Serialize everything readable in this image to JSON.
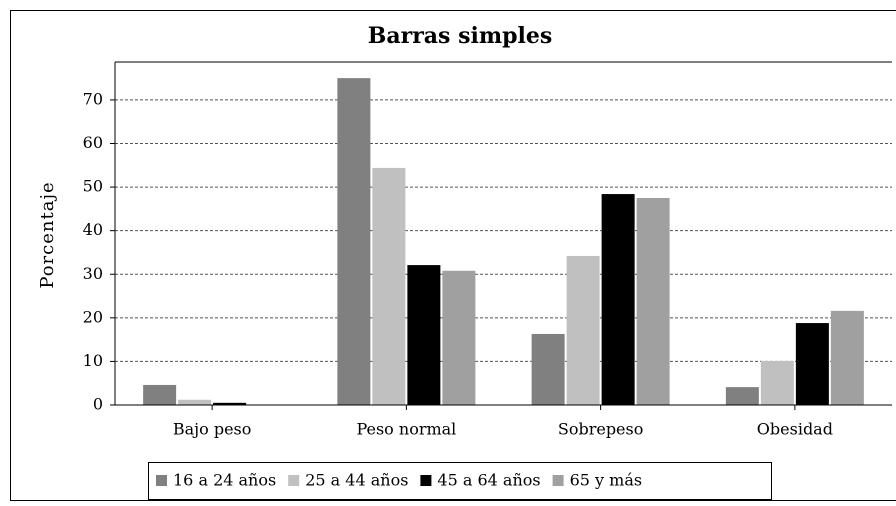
{
  "chart_data": {
    "type": "bar",
    "title": "Barras simples",
    "y_label": "Porcentaje",
    "categories": [
      "Bajo peso",
      "Peso normal",
      "Sobrepeso",
      "Obesidad"
    ],
    "series": [
      {
        "name": "16 a 24 años",
        "color": "#808080",
        "values": [
          4.6,
          75.0,
          16.3,
          4.1
        ]
      },
      {
        "name": "25 a 44 años",
        "color": "#c0c0c0",
        "values": [
          1.2,
          54.4,
          34.2,
          10.1
        ]
      },
      {
        "name": "45 a 64 años",
        "color": "#000000",
        "values": [
          0.5,
          32.1,
          48.4,
          18.8
        ]
      },
      {
        "name": "65 y más",
        "color": "#a0a0a0",
        "values": [
          0,
          30.8,
          47.5,
          21.6
        ]
      }
    ],
    "ylim": [
      0,
      78.7
    ],
    "yticks": [
      0,
      10,
      20,
      30,
      40,
      50,
      60,
      70
    ],
    "grid": true,
    "legend": "bottom"
  }
}
